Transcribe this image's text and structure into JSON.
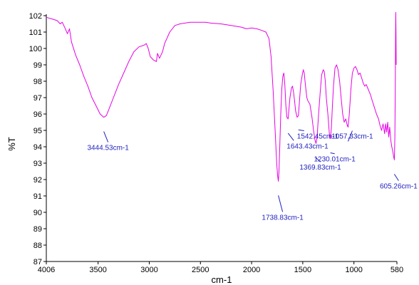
{
  "chart_data": {
    "type": "line",
    "xlabel": "cm-1",
    "ylabel": "%T",
    "xlim": [
      4006,
      580
    ],
    "ylim": [
      87,
      102
    ],
    "x_reversed": true,
    "grid": false,
    "x_ticks": [
      "4006",
      "3500",
      "3000",
      "2500",
      "2000",
      "1500",
      "1000",
      "580"
    ],
    "x_tick_values": [
      4006,
      3500,
      3000,
      2500,
      2000,
      1500,
      1000,
      580
    ],
    "y_ticks": [
      87,
      88,
      89,
      90,
      91,
      92,
      93,
      94,
      95,
      96,
      97,
      98,
      99,
      100,
      101,
      102
    ],
    "colors": {
      "line": "#e600e6",
      "annotation": "#1f1fbf"
    },
    "series": [
      {
        "points": [
          [
            4006,
            101.9
          ],
          [
            3950,
            101.8
          ],
          [
            3900,
            101.7
          ],
          [
            3870,
            101.5
          ],
          [
            3850,
            101.6
          ],
          [
            3820,
            101.2
          ],
          [
            3800,
            100.9
          ],
          [
            3780,
            101.2
          ],
          [
            3760,
            100.4
          ],
          [
            3720,
            99.6
          ],
          [
            3680,
            99.0
          ],
          [
            3640,
            98.3
          ],
          [
            3600,
            97.7
          ],
          [
            3560,
            97.0
          ],
          [
            3520,
            96.5
          ],
          [
            3480,
            96.0
          ],
          [
            3445,
            95.8
          ],
          [
            3420,
            95.9
          ],
          [
            3400,
            96.2
          ],
          [
            3350,
            97.0
          ],
          [
            3300,
            97.8
          ],
          [
            3250,
            98.5
          ],
          [
            3200,
            99.2
          ],
          [
            3150,
            99.8
          ],
          [
            3100,
            100.1
          ],
          [
            3050,
            100.2
          ],
          [
            3030,
            100.3
          ],
          [
            3010,
            100.0
          ],
          [
            2990,
            99.5
          ],
          [
            2960,
            99.3
          ],
          [
            2930,
            99.2
          ],
          [
            2920,
            99.7
          ],
          [
            2900,
            99.4
          ],
          [
            2870,
            99.8
          ],
          [
            2850,
            100.3
          ],
          [
            2800,
            101.0
          ],
          [
            2750,
            101.4
          ],
          [
            2700,
            101.5
          ],
          [
            2600,
            101.6
          ],
          [
            2500,
            101.6
          ],
          [
            2450,
            101.6
          ],
          [
            2400,
            101.55
          ],
          [
            2300,
            101.5
          ],
          [
            2200,
            101.4
          ],
          [
            2100,
            101.3
          ],
          [
            2050,
            101.2
          ],
          [
            2000,
            101.25
          ],
          [
            1950,
            101.2
          ],
          [
            1900,
            101.1
          ],
          [
            1860,
            101.0
          ],
          [
            1830,
            100.6
          ],
          [
            1810,
            99.5
          ],
          [
            1790,
            97.5
          ],
          [
            1770,
            95.0
          ],
          [
            1755,
            93.0
          ],
          [
            1745,
            92.2
          ],
          [
            1739,
            91.9
          ],
          [
            1733,
            92.4
          ],
          [
            1725,
            94.0
          ],
          [
            1715,
            96.0
          ],
          [
            1705,
            97.5
          ],
          [
            1695,
            98.3
          ],
          [
            1685,
            98.5
          ],
          [
            1675,
            97.8
          ],
          [
            1665,
            96.5
          ],
          [
            1655,
            95.8
          ],
          [
            1643,
            95.7
          ],
          [
            1635,
            96.3
          ],
          [
            1625,
            97.0
          ],
          [
            1610,
            97.6
          ],
          [
            1600,
            97.7
          ],
          [
            1590,
            97.3
          ],
          [
            1580,
            96.8
          ],
          [
            1570,
            96.2
          ],
          [
            1555,
            95.8
          ],
          [
            1542,
            95.9
          ],
          [
            1530,
            97.0
          ],
          [
            1520,
            97.8
          ],
          [
            1505,
            98.4
          ],
          [
            1495,
            98.7
          ],
          [
            1485,
            98.5
          ],
          [
            1475,
            97.8
          ],
          [
            1460,
            97.0
          ],
          [
            1450,
            96.8
          ],
          [
            1430,
            96.6
          ],
          [
            1410,
            95.8
          ],
          [
            1395,
            95.0
          ],
          [
            1380,
            94.4
          ],
          [
            1370,
            94.2
          ],
          [
            1360,
            94.6
          ],
          [
            1345,
            96.0
          ],
          [
            1330,
            97.3
          ],
          [
            1315,
            98.4
          ],
          [
            1300,
            98.7
          ],
          [
            1290,
            98.6
          ],
          [
            1280,
            98.0
          ],
          [
            1270,
            97.0
          ],
          [
            1255,
            96.0
          ],
          [
            1240,
            94.8
          ],
          [
            1230,
            94.5
          ],
          [
            1220,
            95.2
          ],
          [
            1210,
            96.5
          ],
          [
            1200,
            97.7
          ],
          [
            1185,
            98.8
          ],
          [
            1170,
            99.0
          ],
          [
            1155,
            98.7
          ],
          [
            1140,
            98.0
          ],
          [
            1125,
            97.0
          ],
          [
            1110,
            96.0
          ],
          [
            1095,
            95.5
          ],
          [
            1080,
            95.7
          ],
          [
            1065,
            95.3
          ],
          [
            1057,
            95.2
          ],
          [
            1045,
            96.0
          ],
          [
            1030,
            97.5
          ],
          [
            1015,
            98.5
          ],
          [
            1000,
            98.8
          ],
          [
            985,
            98.9
          ],
          [
            970,
            98.7
          ],
          [
            955,
            98.4
          ],
          [
            940,
            98.5
          ],
          [
            925,
            98.2
          ],
          [
            910,
            97.9
          ],
          [
            895,
            97.7
          ],
          [
            880,
            97.8
          ],
          [
            860,
            97.5
          ],
          [
            840,
            97.2
          ],
          [
            820,
            96.8
          ],
          [
            800,
            96.4
          ],
          [
            780,
            96.0
          ],
          [
            760,
            95.7
          ],
          [
            745,
            95.3
          ],
          [
            730,
            95.0
          ],
          [
            715,
            95.4
          ],
          [
            700,
            94.8
          ],
          [
            690,
            95.4
          ],
          [
            680,
            94.9
          ],
          [
            670,
            95.5
          ],
          [
            660,
            94.6
          ],
          [
            650,
            95.2
          ],
          [
            640,
            94.4
          ],
          [
            630,
            94.0
          ],
          [
            620,
            93.7
          ],
          [
            612,
            93.4
          ],
          [
            605,
            93.2
          ],
          [
            600,
            94.5
          ],
          [
            596,
            97.5
          ],
          [
            593,
            100.5
          ],
          [
            591,
            102.2
          ],
          [
            589,
            101.0
          ],
          [
            587,
            99.0
          ]
        ]
      }
    ],
    "annotations": [
      {
        "label": "3444.53cm-1",
        "x": 3444.53,
        "y": 95.8,
        "label_y": 93.8,
        "anchor": "middle"
      },
      {
        "label": "1738.83cm-1",
        "x": 1738.83,
        "y": 91.9,
        "label_y": 89.55,
        "anchor": "middle"
      },
      {
        "label": "1643.43cm-1",
        "x": 1643.43,
        "y": 95.7,
        "label_y": 93.9,
        "anchor": "start"
      },
      {
        "label": "1542.45cm-1",
        "x": 1542.45,
        "y": 95.9,
        "label_y": 94.5,
        "anchor": "start"
      },
      {
        "label": "1369.83cm-1",
        "x": 1369.83,
        "y": 94.2,
        "label_y": 92.6,
        "anchor": "middle"
      },
      {
        "label": "1230.01cm-1",
        "x": 1230.01,
        "y": 94.5,
        "label_y": 93.1,
        "anchor": "middle"
      },
      {
        "label": "1057.33cm-1",
        "x": 1057.33,
        "y": 95.2,
        "label_y": 94.5,
        "anchor": "middle"
      },
      {
        "label": "605.26cm-1",
        "x": 605.26,
        "y": 93.2,
        "label_y": 91.45,
        "anchor": "middle"
      }
    ]
  }
}
